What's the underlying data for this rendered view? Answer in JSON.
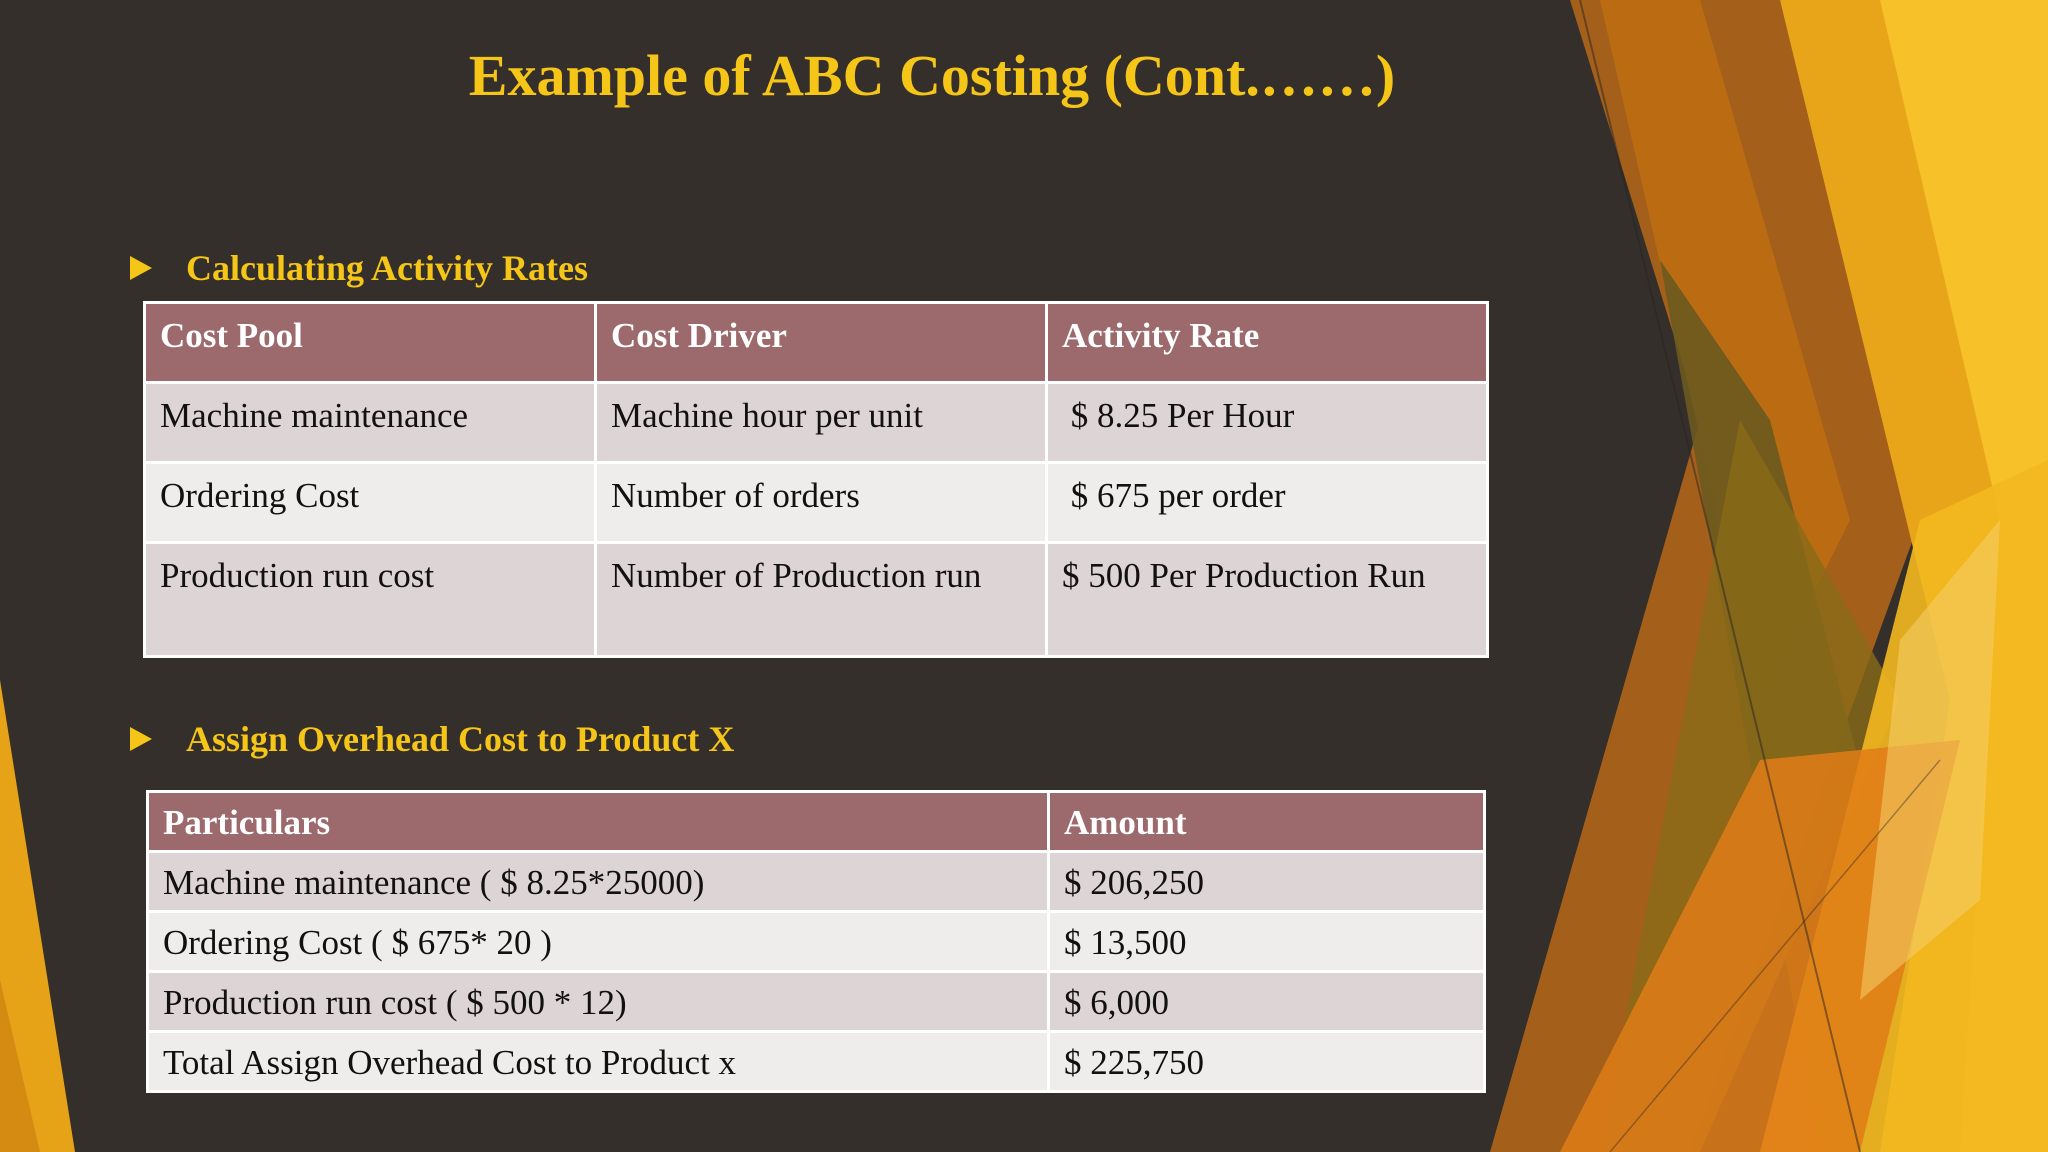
{
  "slide": {
    "title": "Example of ABC Costing (Cont.……)"
  },
  "section1": {
    "heading": "Calculating Activity Rates",
    "columns": [
      "Cost Pool",
      "Cost Driver",
      "Activity Rate"
    ],
    "rows": [
      [
        "Machine maintenance",
        "Machine hour per unit",
        " $ 8.25 Per Hour"
      ],
      [
        "Ordering Cost",
        "Number of orders",
        " $ 675 per order"
      ],
      [
        "Production run cost",
        "Number of Production run",
        "$ 500 Per Production Run"
      ]
    ]
  },
  "section2": {
    "heading": "Assign Overhead Cost to Product X",
    "columns": [
      "Particulars",
      "Amount"
    ],
    "rows": [
      [
        "Machine maintenance ( $ 8.25*25000)",
        "$ 206,250"
      ],
      [
        "Ordering Cost ( $ 675* 20 )",
        "$ 13,500"
      ],
      [
        "Production run cost ( $ 500 * 12)",
        "$ 6,000"
      ],
      [
        "Total Assign Overhead Cost to Product x",
        "$ 225,750"
      ]
    ]
  },
  "colors": {
    "background": "#352f2c",
    "title": "#f5c518",
    "header_fill": "#9c6a6c",
    "row_dark": "#ddd5d5",
    "row_light": "#efecec"
  }
}
